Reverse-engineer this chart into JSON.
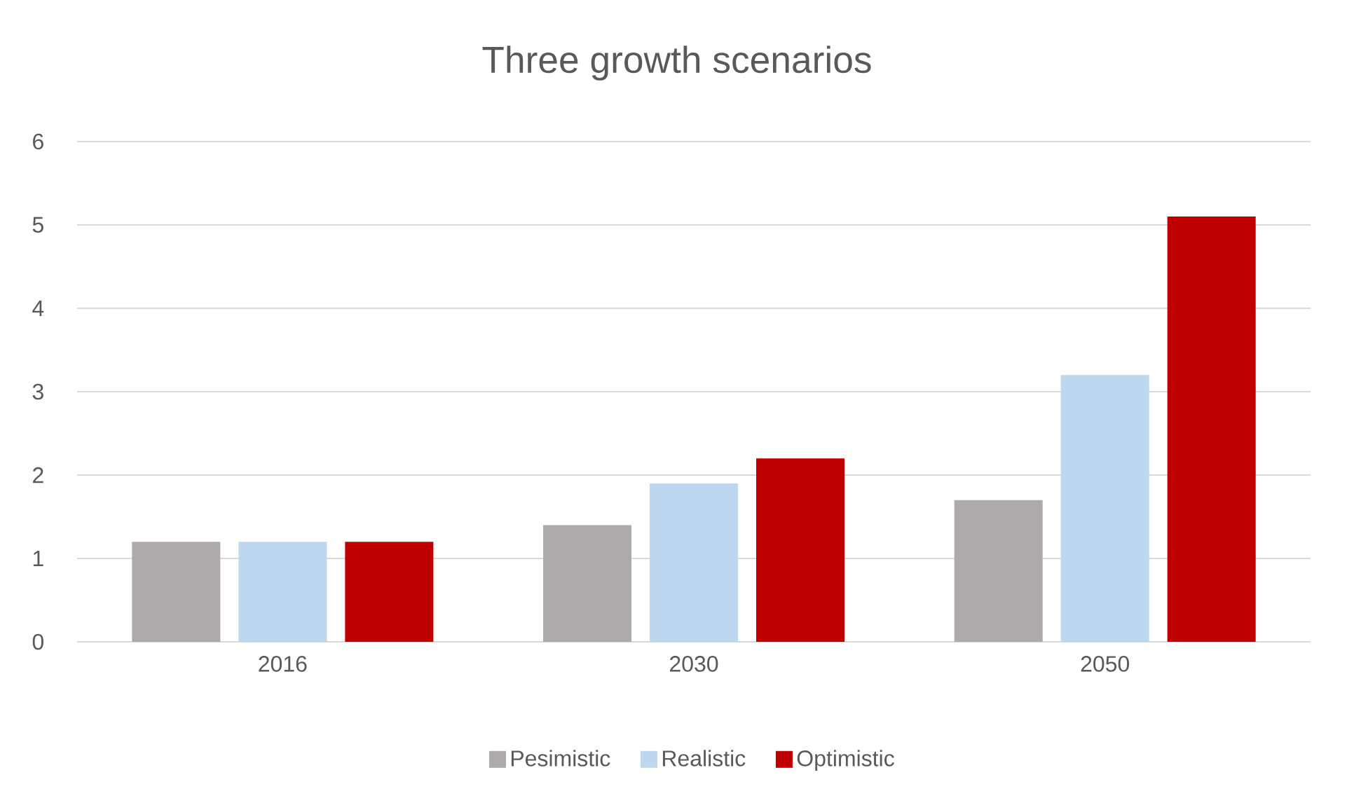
{
  "chart_data": {
    "type": "bar",
    "title": "Three growth scenarios",
    "categories": [
      "2016",
      "2030",
      "2050"
    ],
    "series": [
      {
        "name": "Pesimistic",
        "color": "#aeaaaa",
        "values": [
          1.2,
          1.4,
          1.7
        ]
      },
      {
        "name": "Realistic",
        "color": "#bdd7ee",
        "values": [
          1.2,
          1.9,
          3.2
        ]
      },
      {
        "name": "Optimistic",
        "color": "#c00000",
        "values": [
          1.2,
          2.2,
          5.1
        ]
      }
    ],
    "ylim": [
      0,
      6
    ],
    "yticks": [
      0,
      1,
      2,
      3,
      4,
      5,
      6
    ],
    "grid": "y",
    "legend": "bottom"
  }
}
